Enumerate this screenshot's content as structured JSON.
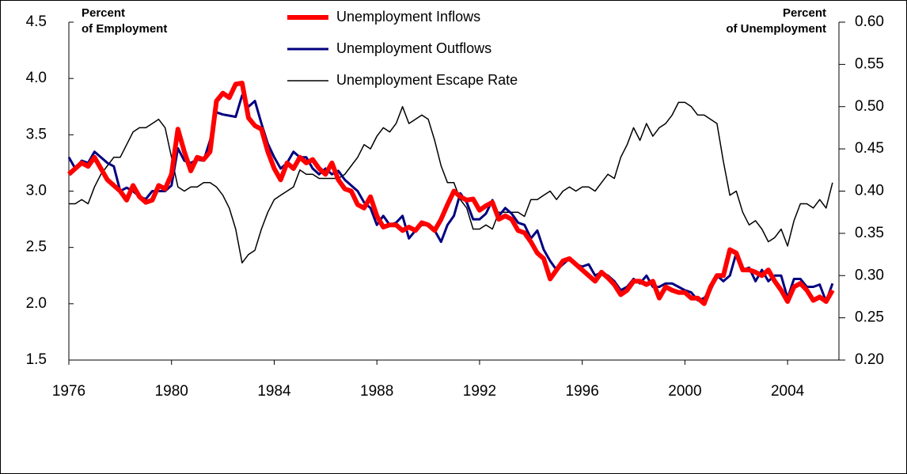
{
  "chart_data": {
    "type": "line",
    "ylabel": [
      "Percent",
      "of Employment"
    ],
    "y2label": [
      "Percent",
      "of Unemployment"
    ],
    "legend": "top-center",
    "xlim": [
      1976,
      2006
    ],
    "xticks": [
      1976,
      1980,
      1984,
      1988,
      1992,
      1996,
      2000,
      2004
    ],
    "ylim": [
      1.5,
      4.5
    ],
    "yticks": [
      1.5,
      {
        "value": 2,
        "label": "2.0"
      },
      2.5,
      {
        "value": 3,
        "label": "3.0"
      },
      3.5,
      {
        "value": 4,
        "label": "4.0"
      },
      4.5
    ],
    "y2lim": [
      0.2,
      0.6
    ],
    "y2ticks": [
      {
        "value": 0.2,
        "label": "0.20"
      },
      {
        "value": 0.25,
        "label": "0.25"
      },
      {
        "value": 0.3,
        "label": "0.30"
      },
      {
        "value": 0.35,
        "label": "0.35"
      },
      {
        "value": 0.4,
        "label": "0.40"
      },
      {
        "value": 0.45,
        "label": "0.45"
      },
      {
        "value": 0.5,
        "label": "0.50"
      },
      {
        "value": 0.55,
        "label": "0.55"
      },
      {
        "value": 0.6,
        "label": "0.60"
      }
    ],
    "x": [
      1976,
      1976.25,
      1976.5,
      1976.75,
      1977,
      1977.25,
      1977.5,
      1977.75,
      1978,
      1978.25,
      1978.5,
      1978.75,
      1979,
      1979.25,
      1979.5,
      1979.75,
      1980,
      1980.25,
      1980.5,
      1980.75,
      1981,
      1981.25,
      1981.5,
      1981.75,
      1982,
      1982.25,
      1982.5,
      1982.75,
      1983,
      1983.25,
      1983.5,
      1983.75,
      1984,
      1984.25,
      1984.5,
      1984.75,
      1985,
      1985.25,
      1985.5,
      1985.75,
      1986,
      1986.25,
      1986.5,
      1986.75,
      1987,
      1987.25,
      1987.5,
      1987.75,
      1988,
      1988.25,
      1988.5,
      1988.75,
      1989,
      1989.25,
      1989.5,
      1989.75,
      1990,
      1990.25,
      1990.5,
      1990.75,
      1991,
      1991.25,
      1991.5,
      1991.75,
      1992,
      1992.25,
      1992.5,
      1992.75,
      1993,
      1993.25,
      1993.5,
      1993.75,
      1994,
      1994.25,
      1994.5,
      1994.75,
      1995,
      1995.25,
      1995.5,
      1995.75,
      1996,
      1996.25,
      1996.5,
      1996.75,
      1997,
      1997.25,
      1997.5,
      1997.75,
      1998,
      1998.25,
      1998.5,
      1998.75,
      1999,
      1999.25,
      1999.5,
      1999.75,
      2000,
      2000.25,
      2000.5,
      2000.75,
      2001,
      2001.25,
      2001.5,
      2001.75,
      2002,
      2002.25,
      2002.5,
      2002.75,
      2003,
      2003.25,
      2003.5,
      2003.75,
      2004,
      2004.25,
      2004.5,
      2004.75,
      2005,
      2005.25,
      2005.5,
      2005.75
    ],
    "series": [
      {
        "name": "Unemployment Inflows",
        "color": "#ff0000",
        "linewidth": 6,
        "axis": "y",
        "values": [
          3.15,
          3.2,
          3.25,
          3.22,
          3.3,
          3.2,
          3.1,
          3.05,
          3.0,
          2.92,
          3.05,
          2.95,
          2.9,
          2.92,
          3.05,
          3.02,
          3.15,
          3.55,
          3.35,
          3.18,
          3.3,
          3.28,
          3.35,
          3.8,
          3.87,
          3.83,
          3.95,
          3.96,
          3.65,
          3.58,
          3.55,
          3.35,
          3.2,
          3.1,
          3.25,
          3.2,
          3.3,
          3.25,
          3.28,
          3.2,
          3.15,
          3.25,
          3.1,
          3.02,
          3.0,
          2.88,
          2.85,
          2.95,
          2.78,
          2.68,
          2.7,
          2.7,
          2.65,
          2.68,
          2.65,
          2.72,
          2.7,
          2.65,
          2.75,
          2.88,
          3.0,
          2.95,
          2.92,
          2.93,
          2.83,
          2.87,
          2.9,
          2.75,
          2.78,
          2.75,
          2.65,
          2.63,
          2.55,
          2.45,
          2.4,
          2.22,
          2.3,
          2.38,
          2.4,
          2.35,
          2.3,
          2.25,
          2.2,
          2.28,
          2.23,
          2.17,
          2.08,
          2.12,
          2.2,
          2.2,
          2.17,
          2.2,
          2.05,
          2.15,
          2.12,
          2.1,
          2.1,
          2.05,
          2.05,
          2.0,
          2.15,
          2.25,
          2.25,
          2.48,
          2.45,
          2.3,
          2.3,
          2.28,
          2.25,
          2.3,
          2.2,
          2.12,
          2.02,
          2.15,
          2.18,
          2.12,
          2.03,
          2.06,
          2.02,
          2.12
        ]
      },
      {
        "name": "Unemployment Outflows",
        "color": "#000080",
        "linewidth": 3,
        "axis": "y",
        "values": [
          3.3,
          3.2,
          3.27,
          3.25,
          3.35,
          3.3,
          3.25,
          3.22,
          3.0,
          3.03,
          3.0,
          2.95,
          2.93,
          3.0,
          3.0,
          3.0,
          3.05,
          3.38,
          3.27,
          3.25,
          3.28,
          3.27,
          3.45,
          3.7,
          3.68,
          3.67,
          3.66,
          3.85,
          3.75,
          3.8,
          3.6,
          3.42,
          3.3,
          3.2,
          3.25,
          3.35,
          3.3,
          3.3,
          3.2,
          3.15,
          3.2,
          3.15,
          3.18,
          3.1,
          3.05,
          3.0,
          2.9,
          2.85,
          2.7,
          2.78,
          2.7,
          2.72,
          2.78,
          2.58,
          2.65,
          2.7,
          2.7,
          2.65,
          2.55,
          2.7,
          2.78,
          2.98,
          2.9,
          2.75,
          2.75,
          2.8,
          2.92,
          2.78,
          2.85,
          2.8,
          2.72,
          2.7,
          2.58,
          2.65,
          2.48,
          2.38,
          2.3,
          2.35,
          2.4,
          2.35,
          2.33,
          2.35,
          2.25,
          2.28,
          2.25,
          2.2,
          2.12,
          2.15,
          2.22,
          2.18,
          2.25,
          2.15,
          2.15,
          2.18,
          2.18,
          2.15,
          2.12,
          2.1,
          2.03,
          2.05,
          2.12,
          2.25,
          2.2,
          2.25,
          2.45,
          2.3,
          2.32,
          2.2,
          2.3,
          2.2,
          2.25,
          2.25,
          2.05,
          2.22,
          2.22,
          2.15,
          2.15,
          2.17,
          2.02,
          2.18
        ]
      },
      {
        "name": "Unemployment Escape Rate",
        "color": "#000000",
        "linewidth": 1.5,
        "axis": "y2",
        "values": [
          0.385,
          0.385,
          0.39,
          0.385,
          0.405,
          0.42,
          0.43,
          0.44,
          0.44,
          0.455,
          0.47,
          0.475,
          0.475,
          0.48,
          0.485,
          0.475,
          0.44,
          0.405,
          0.4,
          0.405,
          0.405,
          0.41,
          0.41,
          0.405,
          0.395,
          0.38,
          0.355,
          0.315,
          0.325,
          0.33,
          0.355,
          0.375,
          0.39,
          0.395,
          0.4,
          0.405,
          0.425,
          0.42,
          0.42,
          0.415,
          0.415,
          0.415,
          0.415,
          0.42,
          0.43,
          0.44,
          0.455,
          0.45,
          0.465,
          0.475,
          0.47,
          0.48,
          0.5,
          0.48,
          0.485,
          0.49,
          0.485,
          0.46,
          0.43,
          0.41,
          0.41,
          0.39,
          0.38,
          0.355,
          0.355,
          0.36,
          0.355,
          0.375,
          0.375,
          0.375,
          0.375,
          0.37,
          0.39,
          0.39,
          0.395,
          0.4,
          0.39,
          0.4,
          0.405,
          0.4,
          0.405,
          0.405,
          0.4,
          0.41,
          0.42,
          0.415,
          0.44,
          0.455,
          0.475,
          0.46,
          0.48,
          0.465,
          0.475,
          0.48,
          0.49,
          0.505,
          0.505,
          0.5,
          0.49,
          0.49,
          0.485,
          0.48,
          0.435,
          0.395,
          0.4,
          0.375,
          0.36,
          0.365,
          0.355,
          0.34,
          0.345,
          0.355,
          0.335,
          0.365,
          0.385,
          0.385,
          0.38,
          0.39,
          0.38,
          0.41
        ]
      }
    ]
  }
}
